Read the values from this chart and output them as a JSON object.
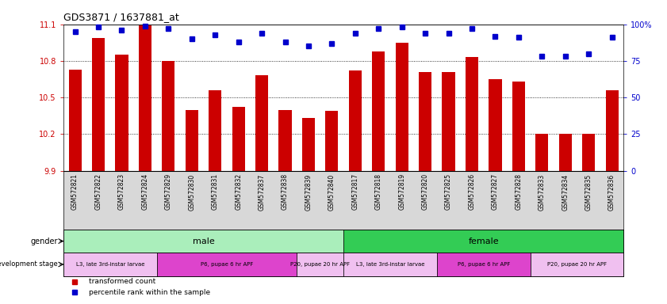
{
  "title": "GDS3871 / 1637881_at",
  "samples": [
    "GSM572821",
    "GSM572822",
    "GSM572823",
    "GSM572824",
    "GSM572829",
    "GSM572830",
    "GSM572831",
    "GSM572832",
    "GSM572837",
    "GSM572838",
    "GSM572839",
    "GSM572840",
    "GSM572817",
    "GSM572818",
    "GSM572819",
    "GSM572820",
    "GSM572825",
    "GSM572826",
    "GSM572827",
    "GSM572828",
    "GSM572833",
    "GSM572834",
    "GSM572835",
    "GSM572836"
  ],
  "transformed_count": [
    10.73,
    10.99,
    10.85,
    11.09,
    10.8,
    10.4,
    10.56,
    10.42,
    10.68,
    10.4,
    10.33,
    10.39,
    10.72,
    10.88,
    10.95,
    10.71,
    10.71,
    10.83,
    10.65,
    10.63,
    10.2,
    10.2,
    10.2,
    10.56
  ],
  "percentile_rank": [
    95,
    98,
    96,
    99,
    97,
    90,
    93,
    88,
    94,
    88,
    85,
    87,
    94,
    97,
    98,
    94,
    94,
    97,
    92,
    91,
    78,
    78,
    80,
    91
  ],
  "ylim_left": [
    9.9,
    11.1
  ],
  "ylim_right": [
    0,
    100
  ],
  "yticks_left": [
    9.9,
    10.2,
    10.5,
    10.8,
    11.1
  ],
  "yticks_right": [
    0,
    25,
    50,
    75,
    100
  ],
  "bar_color": "#cc0000",
  "dot_color": "#0000cc",
  "bar_baseline": 9.9,
  "bar_width": 0.55,
  "gender_groups": [
    {
      "label": "male",
      "start": 0,
      "end": 12,
      "color": "#aaeebb"
    },
    {
      "label": "female",
      "start": 12,
      "end": 24,
      "color": "#33cc55"
    }
  ],
  "dev_stage_groups": [
    {
      "label": "L3, late 3rd-instar larvae",
      "start": 0,
      "end": 4,
      "color": "#f0c0f0"
    },
    {
      "label": "P6, pupae 6 hr APF",
      "start": 4,
      "end": 10,
      "color": "#dd44cc"
    },
    {
      "label": "P20, pupae 20 hr APF",
      "start": 10,
      "end": 12,
      "color": "#f0c0f0"
    },
    {
      "label": "L3, late 3rd-instar larvae",
      "start": 12,
      "end": 16,
      "color": "#f0c0f0"
    },
    {
      "label": "P6, pupae 6 hr APF",
      "start": 16,
      "end": 20,
      "color": "#dd44cc"
    },
    {
      "label": "P20, pupae 20 hr APF",
      "start": 20,
      "end": 24,
      "color": "#f0c0f0"
    }
  ],
  "legend_items": [
    {
      "label": "transformed count",
      "color": "#cc0000"
    },
    {
      "label": "percentile rank within the sample",
      "color": "#0000cc"
    }
  ],
  "xlabel_bg": "#d8d8d8",
  "title_fontsize": 9,
  "label_fontsize": 5.5,
  "tick_fontsize": 7
}
